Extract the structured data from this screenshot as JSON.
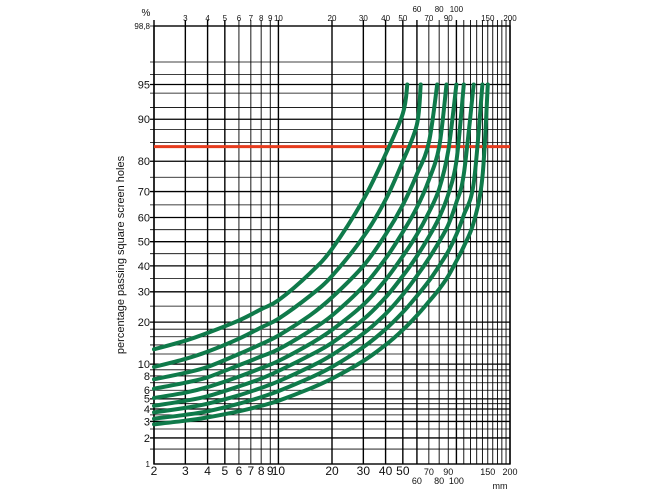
{
  "chart_data": {
    "type": "line",
    "title": "",
    "ylabel": "percentage passing square  screen holes",
    "xunit": "mm",
    "yunit": "%",
    "x_scale": "log",
    "y_scale": "probability",
    "xlim": [
      2,
      200
    ],
    "ylim": [
      1,
      98.8
    ],
    "grid": true,
    "x_ticks_bottom": [
      "2",
      "3",
      "4",
      "5",
      "6",
      "7",
      "8",
      "9",
      "10",
      "20",
      "30",
      "40",
      "50",
      "60",
      "70",
      "80",
      "90",
      "100",
      "150",
      "200"
    ],
    "x_ticks_top": [
      "3",
      "4",
      "5",
      "6",
      "7",
      "8",
      "9",
      "10",
      "20",
      "30",
      "40",
      "50",
      "60",
      "70",
      "80",
      "90",
      "100",
      "150",
      "200"
    ],
    "y_ticks": [
      "1",
      "2",
      "3",
      "4",
      "5",
      "6",
      "8",
      "10",
      "20",
      "30",
      "40",
      "50",
      "60",
      "70",
      "80",
      "90",
      "95",
      "98,8"
    ],
    "reference_line": {
      "y": 84,
      "color": "#e63c1e"
    },
    "series_color": "#0f7a4a",
    "series": [
      {
        "x": [
          2,
          3,
          4,
          6,
          8,
          10,
          15,
          20,
          30,
          40,
          50,
          53
        ],
        "y": [
          13,
          15,
          17,
          20.5,
          24,
          27,
          37,
          47,
          67,
          82,
          91,
          95
        ]
      },
      {
        "x": [
          2,
          3,
          4,
          6,
          8,
          10,
          15,
          20,
          30,
          40,
          50,
          60,
          63
        ],
        "y": [
          9.5,
          11,
          12.5,
          15.5,
          18.5,
          21,
          28.5,
          36,
          52,
          67,
          80,
          89,
          95
        ]
      },
      {
        "x": [
          2,
          3,
          4,
          6,
          8,
          10,
          15,
          20,
          30,
          40,
          50,
          60,
          70,
          78
        ],
        "y": [
          7.5,
          8.5,
          9.5,
          12,
          14.2,
          16.3,
          22,
          28,
          40,
          53,
          65,
          76,
          85,
          95
        ]
      },
      {
        "x": [
          2,
          3,
          4,
          6,
          8,
          10,
          15,
          20,
          30,
          40,
          50,
          60,
          70,
          80,
          88
        ],
        "y": [
          6.2,
          7,
          7.8,
          9.8,
          11.5,
          13,
          17.5,
          22,
          32,
          43,
          54,
          64,
          74,
          84,
          95
        ]
      },
      {
        "x": [
          2,
          3,
          4,
          6,
          8,
          10,
          15,
          20,
          30,
          40,
          50,
          60,
          70,
          80,
          90,
          100
        ],
        "y": [
          5.1,
          5.7,
          6.4,
          7.9,
          9.3,
          10.6,
          14.2,
          17.8,
          25.5,
          34.5,
          44,
          53,
          62,
          71,
          83,
          95
        ]
      },
      {
        "x": [
          2,
          3,
          4,
          6,
          8,
          10,
          15,
          20,
          30,
          40,
          50,
          60,
          70,
          80,
          90,
          100,
          110
        ],
        "y": [
          4.3,
          4.8,
          5.3,
          6.5,
          7.6,
          8.8,
          11.7,
          14.5,
          20.8,
          28,
          36,
          44,
          52,
          60,
          69,
          80,
          95
        ]
      },
      {
        "x": [
          2,
          3,
          4,
          6,
          8,
          10,
          15,
          20,
          30,
          40,
          50,
          60,
          70,
          80,
          90,
          100,
          110,
          125
        ],
        "y": [
          3.7,
          4.1,
          4.5,
          5.4,
          6.3,
          7.2,
          9.5,
          11.8,
          16.8,
          22.5,
          29,
          36,
          43,
          50,
          57,
          66,
          76,
          95
        ]
      },
      {
        "x": [
          2,
          3,
          4,
          6,
          8,
          10,
          15,
          20,
          30,
          40,
          50,
          60,
          70,
          80,
          90,
          100,
          110,
          125,
          140
        ],
        "y": [
          3.2,
          3.5,
          3.8,
          4.5,
          5.2,
          5.9,
          7.7,
          9.5,
          13.5,
          18,
          23,
          28.5,
          34,
          40,
          46,
          53,
          61,
          73,
          95
        ]
      },
      {
        "x": [
          2,
          3,
          4,
          6,
          8,
          10,
          15,
          20,
          30,
          40,
          50,
          60,
          70,
          80,
          90,
          100,
          110,
          125,
          140,
          150
        ],
        "y": [
          2.8,
          3.05,
          3.3,
          3.8,
          4.3,
          4.8,
          6.2,
          7.6,
          10.6,
          14,
          17.8,
          22,
          26.5,
          31,
          36,
          42,
          48,
          58,
          75,
          95
        ]
      }
    ]
  }
}
